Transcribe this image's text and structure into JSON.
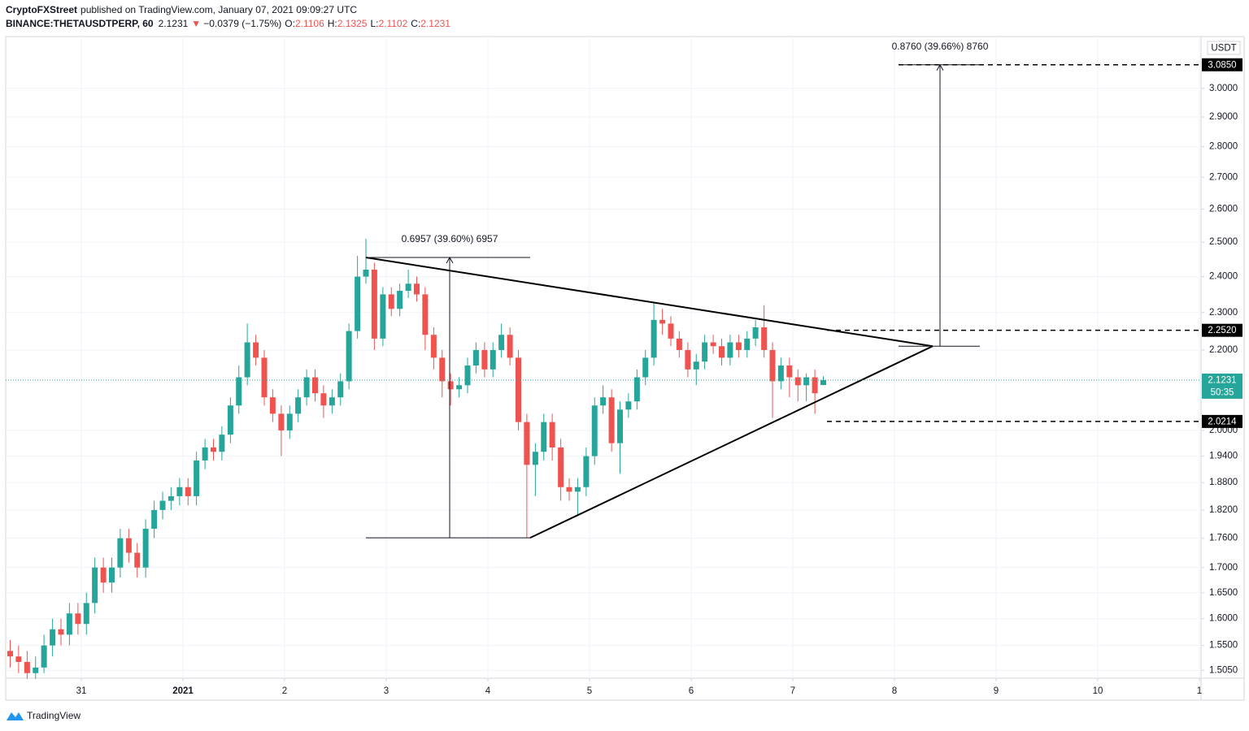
{
  "header": {
    "publisher": "CryptoFXStreet",
    "published": "published on TradingView.com, January 07, 2021 09:09:27 UTC",
    "symbol": "BINANCE:THETAUSDTPERP, 60",
    "change_arrow": "▼",
    "change": "−0.0379 (−1.75%)",
    "ohlc_labels": [
      "O:",
      "H:",
      "L:",
      "C:"
    ]
  },
  "footer": {
    "brand": "TradingView"
  },
  "chart_data": {
    "type": "candlestick",
    "log_scale": true,
    "grid": true,
    "y_unit": "USDT",
    "xlim": [
      -0.744,
      11.016
    ],
    "ylim": [
      1.491,
      3.19
    ],
    "xticks": [
      {
        "value": 0,
        "label": "31"
      },
      {
        "value": 1,
        "label": "2021"
      },
      2,
      3,
      4,
      5,
      6,
      7,
      8,
      9,
      10,
      {
        "value": 11,
        "label": "1"
      }
    ],
    "yticks": [
      {
        "value": 1.505,
        "label": "1.5050"
      },
      {
        "value": 1.55,
        "label": "1.5500"
      },
      {
        "value": 1.6,
        "label": "1.6000"
      },
      {
        "value": 1.65,
        "label": "1.6500"
      },
      {
        "value": 1.7,
        "label": "1.7000"
      },
      {
        "value": 1.76,
        "label": "1.7600"
      },
      {
        "value": 1.82,
        "label": "1.8200"
      },
      {
        "value": 1.88,
        "label": "1.8800"
      },
      {
        "value": 1.94,
        "label": "1.9400"
      },
      {
        "value": 2.0,
        "label": "2.0000"
      },
      {
        "value": 2.2,
        "label": "2.2000"
      },
      {
        "value": 2.3,
        "label": "2.3000"
      },
      {
        "value": 2.4,
        "label": "2.4000"
      },
      {
        "value": 2.5,
        "label": "2.5000"
      },
      {
        "value": 2.6,
        "label": "2.6000"
      },
      {
        "value": 2.7,
        "label": "2.7000"
      },
      {
        "value": 2.8,
        "label": "2.8000"
      },
      {
        "value": 2.9,
        "label": "2.9000"
      },
      {
        "value": 3.0,
        "label": "3.0000"
      }
    ],
    "candles": {
      "up_color": "#26a69a",
      "down_color": "#ef5350",
      "x": [
        -0.7,
        -0.617,
        -0.533,
        -0.45,
        -0.367,
        -0.283,
        -0.2,
        -0.117,
        -0.033,
        0.05,
        0.133,
        0.217,
        0.3,
        0.383,
        0.467,
        0.55,
        0.633,
        0.717,
        0.8,
        0.883,
        0.967,
        1.05,
        1.133,
        1.217,
        1.3,
        1.383,
        1.467,
        1.55,
        1.633,
        1.717,
        1.8,
        1.883,
        1.967,
        2.05,
        2.133,
        2.217,
        2.3,
        2.383,
        2.467,
        2.55,
        2.633,
        2.717,
        2.8,
        2.883,
        2.967,
        3.05,
        3.133,
        3.217,
        3.3,
        3.383,
        3.467,
        3.55,
        3.633,
        3.717,
        3.8,
        3.883,
        3.967,
        4.05,
        4.133,
        4.217,
        4.3,
        4.383,
        4.467,
        4.55,
        4.633,
        4.717,
        4.8,
        4.883,
        4.967,
        5.05,
        5.133,
        5.217,
        5.3,
        5.383,
        5.467,
        5.55,
        5.633,
        5.717,
        5.8,
        5.883,
        5.967,
        6.05,
        6.133,
        6.217,
        6.3,
        6.383,
        6.467,
        6.55,
        6.633,
        6.717,
        6.8,
        6.883,
        6.967,
        7.05,
        7.133,
        7.217,
        7.3
      ],
      "open": [
        1.54,
        1.53,
        1.52,
        1.5,
        1.51,
        1.55,
        1.58,
        1.57,
        1.61,
        1.59,
        1.63,
        1.7,
        1.67,
        1.7,
        1.76,
        1.73,
        1.7,
        1.78,
        1.82,
        1.84,
        1.85,
        1.87,
        1.85,
        1.93,
        1.96,
        1.95,
        1.99,
        2.06,
        2.13,
        2.22,
        2.18,
        2.08,
        2.04,
        2.0,
        2.04,
        2.08,
        2.13,
        2.09,
        2.06,
        2.08,
        2.12,
        2.25,
        2.4,
        2.42,
        2.23,
        2.35,
        2.31,
        2.36,
        2.38,
        2.35,
        2.24,
        2.18,
        2.12,
        2.1,
        2.11,
        2.16,
        2.2,
        2.15,
        2.2,
        2.24,
        2.18,
        2.02,
        1.92,
        1.95,
        2.02,
        1.96,
        1.87,
        1.86,
        1.87,
        1.94,
        2.06,
        2.08,
        1.97,
        2.05,
        2.07,
        2.13,
        2.18,
        2.28,
        2.27,
        2.23,
        2.2,
        2.15,
        2.17,
        2.22,
        2.21,
        2.18,
        2.22,
        2.2,
        2.23,
        2.26,
        2.2,
        2.12,
        2.16,
        2.13,
        2.11,
        2.13,
        2.1106
      ],
      "high": [
        1.56,
        1.55,
        1.54,
        1.53,
        1.57,
        1.6,
        1.6,
        1.63,
        1.63,
        1.65,
        1.72,
        1.72,
        1.72,
        1.78,
        1.78,
        1.75,
        1.8,
        1.84,
        1.86,
        1.87,
        1.89,
        1.89,
        1.95,
        1.98,
        1.98,
        2.01,
        2.08,
        2.16,
        2.27,
        2.24,
        2.2,
        2.1,
        2.06,
        2.06,
        2.1,
        2.15,
        2.15,
        2.11,
        2.1,
        2.14,
        2.27,
        2.46,
        2.51,
        2.44,
        2.37,
        2.37,
        2.38,
        2.42,
        2.4,
        2.37,
        2.26,
        2.2,
        2.14,
        2.13,
        2.18,
        2.22,
        2.22,
        2.22,
        2.27,
        2.26,
        2.2,
        2.04,
        1.97,
        2.04,
        2.04,
        1.98,
        1.89,
        1.89,
        1.96,
        2.08,
        2.11,
        2.1,
        2.07,
        2.09,
        2.15,
        2.2,
        2.33,
        2.31,
        2.29,
        2.25,
        2.22,
        2.19,
        2.24,
        2.24,
        2.23,
        2.24,
        2.24,
        2.25,
        2.28,
        2.32,
        2.22,
        2.18,
        2.18,
        2.15,
        2.14,
        2.15,
        2.1325
      ],
      "low": [
        1.51,
        1.5,
        1.49,
        1.49,
        1.5,
        1.53,
        1.55,
        1.55,
        1.57,
        1.57,
        1.61,
        1.65,
        1.65,
        1.68,
        1.71,
        1.68,
        1.68,
        1.76,
        1.8,
        1.82,
        1.83,
        1.83,
        1.83,
        1.91,
        1.93,
        1.93,
        1.97,
        2.04,
        2.11,
        2.16,
        2.06,
        2.02,
        1.94,
        1.98,
        2.02,
        2.06,
        2.07,
        2.03,
        2.04,
        2.06,
        2.1,
        2.23,
        2.38,
        2.2,
        2.21,
        2.29,
        2.29,
        2.34,
        2.33,
        2.2,
        2.15,
        2.08,
        2.06,
        2.08,
        2.09,
        2.14,
        2.13,
        2.13,
        2.18,
        2.16,
        2.0,
        1.76,
        1.85,
        1.93,
        1.93,
        1.84,
        1.84,
        1.81,
        1.85,
        1.92,
        2.04,
        1.95,
        1.9,
        2.03,
        2.05,
        2.11,
        2.16,
        2.24,
        2.21,
        2.18,
        2.13,
        2.11,
        2.15,
        2.19,
        2.16,
        2.16,
        2.18,
        2.18,
        2.21,
        2.18,
        2.03,
        2.1,
        2.08,
        2.07,
        2.07,
        2.04,
        2.1102
      ],
      "close": [
        1.53,
        1.52,
        1.5,
        1.51,
        1.55,
        1.58,
        1.57,
        1.61,
        1.59,
        1.63,
        1.7,
        1.67,
        1.7,
        1.76,
        1.73,
        1.7,
        1.78,
        1.82,
        1.84,
        1.85,
        1.87,
        1.85,
        1.93,
        1.96,
        1.95,
        1.99,
        2.06,
        2.13,
        2.22,
        2.18,
        2.08,
        2.04,
        2.0,
        2.04,
        2.08,
        2.13,
        2.09,
        2.06,
        2.08,
        2.12,
        2.25,
        2.4,
        2.42,
        2.23,
        2.35,
        2.31,
        2.36,
        2.38,
        2.35,
        2.24,
        2.18,
        2.12,
        2.1,
        2.11,
        2.16,
        2.2,
        2.15,
        2.2,
        2.24,
        2.18,
        2.02,
        1.92,
        1.95,
        2.02,
        1.96,
        1.87,
        1.86,
        1.87,
        1.94,
        2.06,
        2.08,
        1.97,
        2.05,
        2.07,
        2.13,
        2.18,
        2.28,
        2.27,
        2.23,
        2.2,
        2.15,
        2.17,
        2.22,
        2.21,
        2.18,
        2.22,
        2.2,
        2.23,
        2.26,
        2.2,
        2.12,
        2.16,
        2.13,
        2.11,
        2.13,
        2.09,
        2.1231
      ]
    },
    "countdown": "50:35",
    "levels": [
      {
        "value": 3.085,
        "label": "3.0850",
        "from_x": 8.04
      },
      {
        "value": 2.252,
        "label": "2.2520",
        "from_x": 7.336
      },
      {
        "value": 2.0214,
        "from_x": 7.336
      }
    ],
    "trendlines": [
      {
        "from": [
          2.8,
          2.455
        ],
        "to": [
          8.376,
          2.21
        ]
      },
      {
        "from": [
          4.416,
          1.761
        ],
        "to": [
          8.376,
          2.21
        ]
      }
    ],
    "measurements": [
      {
        "label": "0.6957 (39.60%) 6957",
        "x": 3.624,
        "from": 1.761,
        "to": 2.455,
        "x_range": [
          2.8,
          4.416
        ]
      },
      {
        "label": "0.8760 (39.66%) 8760",
        "x": 8.448,
        "from": 2.21,
        "to": 3.085,
        "x_range": [
          8.04,
          8.84
        ]
      }
    ]
  }
}
